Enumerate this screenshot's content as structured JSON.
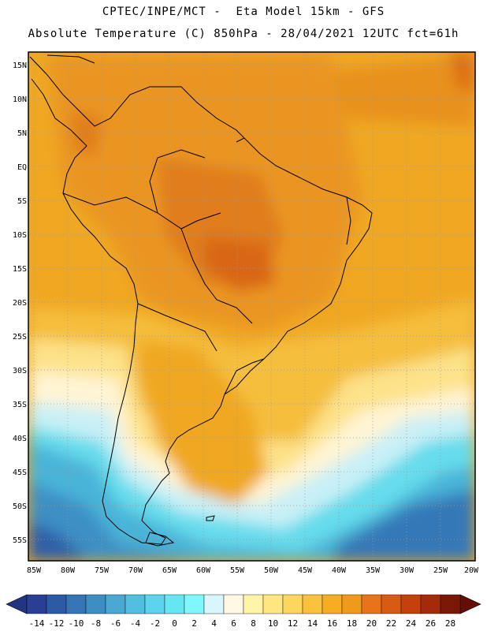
{
  "title": {
    "line1": "CPTEC/INPE/MCT -  Eta Model 15km - GFS",
    "line2": "Absolute Temperature (C) 850hPa - 28/04/2021 12UTC fct=61h"
  },
  "map": {
    "lat_labels": [
      "15N",
      "10N",
      "5N",
      "EQ",
      "5S",
      "10S",
      "15S",
      "20S",
      "25S",
      "30S",
      "35S",
      "40S",
      "45S",
      "50S",
      "55S"
    ],
    "lon_labels": [
      "85W",
      "80W",
      "75W",
      "70W",
      "65W",
      "60W",
      "55W",
      "50W",
      "45W",
      "40W",
      "35W",
      "30W",
      "25W",
      "20W"
    ]
  },
  "colorbar": {
    "labels": [
      "-14",
      "-12",
      "-10",
      "-8",
      "-6",
      "-4",
      "-2",
      "0",
      "2",
      "4",
      "6",
      "8",
      "10",
      "12",
      "14",
      "16",
      "18",
      "20",
      "22",
      "24",
      "26",
      "28"
    ],
    "colors": [
      "#2a3f91",
      "#2d5aa5",
      "#3575b5",
      "#3f8ec3",
      "#4aa8d3",
      "#52bfe0",
      "#5bd4ec",
      "#66e6f2",
      "#7ff7fb",
      "#d8f6fb",
      "#fff8e4",
      "#fff4aa",
      "#ffe680",
      "#fdd65e",
      "#f9c23e",
      "#f5ad24",
      "#ef9a1a",
      "#e8731a",
      "#d95a12",
      "#c4400c",
      "#a52a0a",
      "#7a1808"
    ]
  }
}
